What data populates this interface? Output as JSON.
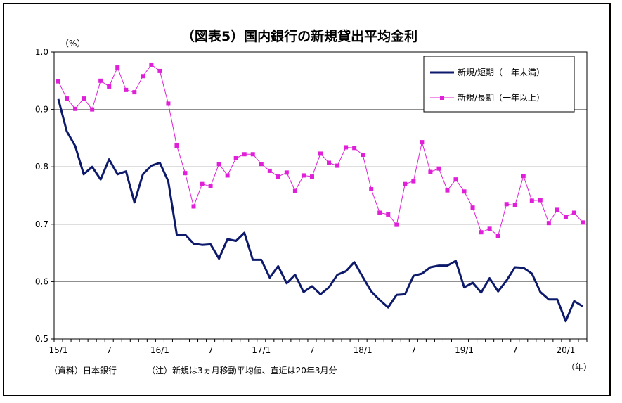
{
  "title": "（図表5）国内銀行の新規貸出平均金利",
  "y_unit": "（%）",
  "x_unit": "（年）",
  "footnote_source": "（資料）日本銀行",
  "footnote_note": "（注）新規は3ヵ月移動平均値、直近は20年3月分",
  "chart_data": {
    "type": "line",
    "ylim": [
      0.5,
      1.0
    ],
    "yticks": [
      "0.5",
      "0.6",
      "0.7",
      "0.8",
      "0.9",
      "1.0"
    ],
    "x_tick_labels": [
      {
        "index": 0,
        "label": "15/1"
      },
      {
        "index": 6,
        "label": "7"
      },
      {
        "index": 12,
        "label": "16/1"
      },
      {
        "index": 18,
        "label": "7"
      },
      {
        "index": 24,
        "label": "17/1"
      },
      {
        "index": 30,
        "label": "7"
      },
      {
        "index": 36,
        "label": "18/1"
      },
      {
        "index": 42,
        "label": "7"
      },
      {
        "index": 48,
        "label": "19/1"
      },
      {
        "index": 54,
        "label": "7"
      },
      {
        "index": 60,
        "label": "20/1"
      }
    ],
    "n_points": 63,
    "grid": true,
    "legend_position": "top-right",
    "series": [
      {
        "name": "新規/短期（一年未満）",
        "color": "#0d1a6b",
        "marker": "none",
        "values": [
          0.918,
          0.862,
          0.836,
          0.787,
          0.8,
          0.778,
          0.813,
          0.787,
          0.792,
          0.738,
          0.787,
          0.802,
          0.807,
          0.775,
          0.682,
          0.682,
          0.666,
          0.664,
          0.665,
          0.64,
          0.674,
          0.671,
          0.685,
          0.638,
          0.638,
          0.607,
          0.627,
          0.597,
          0.612,
          0.582,
          0.592,
          0.578,
          0.59,
          0.612,
          0.618,
          0.634,
          0.608,
          0.583,
          0.568,
          0.555,
          0.577,
          0.578,
          0.61,
          0.614,
          0.625,
          0.628,
          0.628,
          0.636,
          0.59,
          0.598,
          0.581,
          0.606,
          0.583,
          0.602,
          0.625,
          0.624,
          0.614,
          0.582,
          0.569,
          0.569,
          0.531,
          0.566,
          0.557
        ]
      },
      {
        "name": "新規/長期（一年以上）",
        "color": "#e020d8",
        "marker": "square",
        "values": [
          0.949,
          0.919,
          0.901,
          0.919,
          0.9,
          0.95,
          0.94,
          0.973,
          0.934,
          0.93,
          0.958,
          0.978,
          0.967,
          0.91,
          0.837,
          0.789,
          0.731,
          0.77,
          0.766,
          0.805,
          0.785,
          0.815,
          0.822,
          0.822,
          0.805,
          0.793,
          0.783,
          0.79,
          0.758,
          0.785,
          0.783,
          0.823,
          0.807,
          0.802,
          0.834,
          0.833,
          0.821,
          0.761,
          0.72,
          0.717,
          0.699,
          0.77,
          0.775,
          0.843,
          0.791,
          0.797,
          0.759,
          0.778,
          0.757,
          0.729,
          0.686,
          0.692,
          0.68,
          0.735,
          0.733,
          0.784,
          0.741,
          0.742,
          0.702,
          0.725,
          0.713,
          0.72,
          0.703
        ]
      }
    ]
  }
}
